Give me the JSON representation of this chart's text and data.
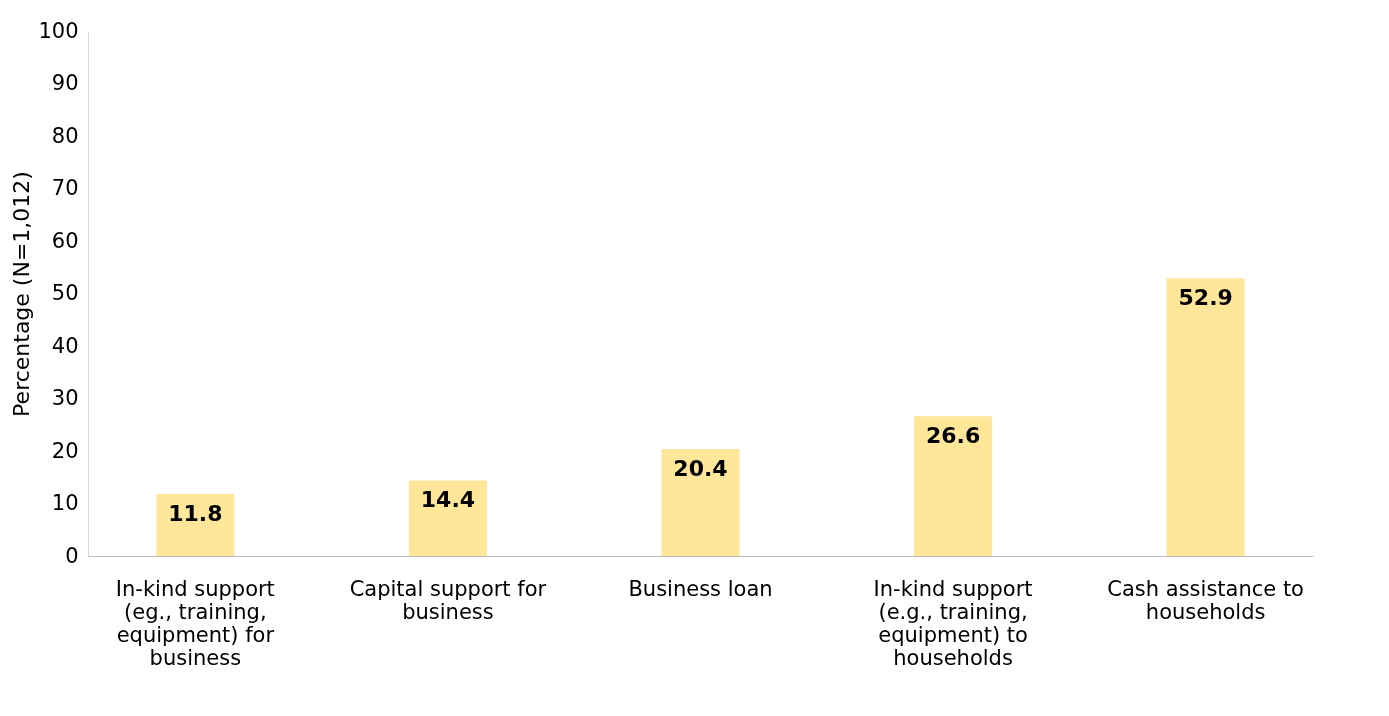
{
  "chart_data": {
    "type": "bar",
    "ylabel": "Percentage (N=1,012)",
    "categories": [
      "In-kind support (eg., training, equipment) for business",
      "Capital support for business",
      "Business loan",
      "In-kind support (e.g., training, equipment) to households",
      "Cash assistance to households"
    ],
    "values": [
      11.8,
      14.4,
      20.4,
      26.6,
      52.9
    ],
    "color": "#ffe699",
    "ylim": [
      0,
      100
    ],
    "yticks": [
      0,
      10,
      20,
      30,
      40,
      50,
      60,
      70,
      80,
      90,
      100
    ],
    "grid": false,
    "data_labels": true
  }
}
